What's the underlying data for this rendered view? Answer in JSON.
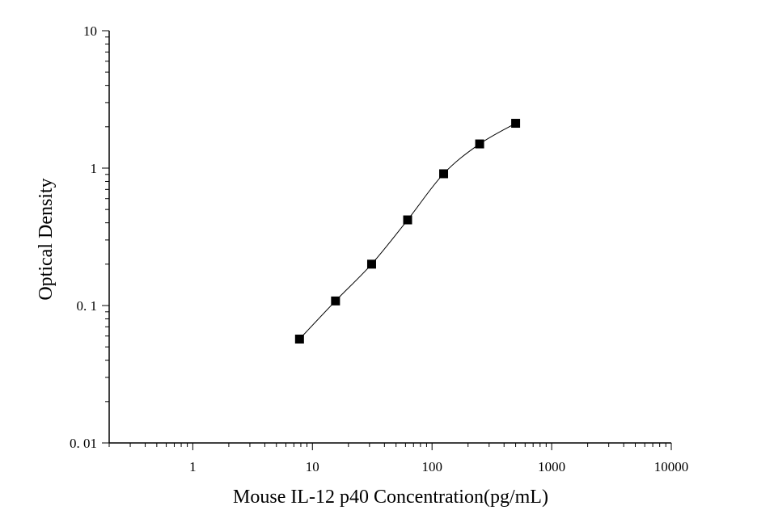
{
  "chart_data": {
    "type": "scatter",
    "xlabel": "Mouse IL-12 p40 Concentration(pg/mL)",
    "ylabel": "Optical Density",
    "xscale": "log",
    "yscale": "log",
    "xlim": [
      0.2,
      10000
    ],
    "ylim": [
      0.01,
      10
    ],
    "x_ticks": [
      1,
      10,
      100,
      1000,
      10000
    ],
    "x_tick_labels": [
      "1",
      "10",
      "100",
      "1000",
      "10000"
    ],
    "y_ticks": [
      0.01,
      0.1,
      1,
      10
    ],
    "y_tick_labels": [
      "0. 01",
      "0. 1",
      "1",
      "10"
    ],
    "grid": false,
    "marker": "square",
    "connect_points": true,
    "series": [
      {
        "x": [
          7.8,
          15.6,
          31.25,
          62.5,
          125,
          250,
          500
        ],
        "y": [
          0.057,
          0.108,
          0.2,
          0.42,
          0.91,
          1.5,
          2.12
        ]
      }
    ],
    "colors": {
      "marker": "#000000",
      "line": "#000000",
      "axis": "#000000"
    }
  }
}
